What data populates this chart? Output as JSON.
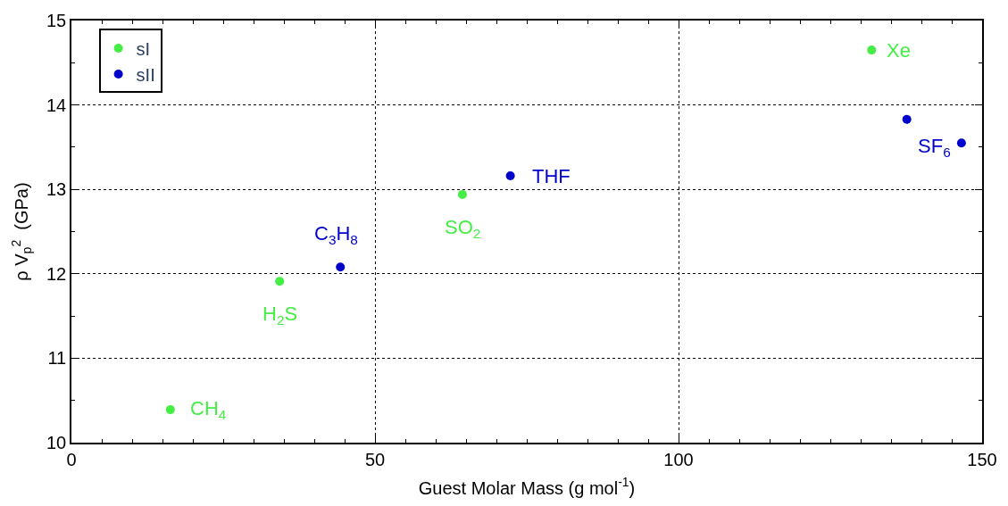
{
  "chart_data": {
    "type": "scatter",
    "xlabel": "Guest Molar Mass (g mol$^{-1}$)",
    "ylabel": "ρ V$_{p}$$^{2}$  (GPa)",
    "series": [
      {
        "name": "sI",
        "color": "#44ee44",
        "x": [
          16.3,
          34.3,
          64.4,
          131.8
        ],
        "values": [
          10.39,
          11.91,
          12.94,
          14.65
        ]
      },
      {
        "name": "sII",
        "color": "#0000cc",
        "x": [
          44.3,
          72.3,
          137.6,
          146.6
        ],
        "values": [
          12.08,
          13.16,
          13.83,
          13.55
        ]
      }
    ],
    "annotations": [
      {
        "text": "CH$_{4}$",
        "x": 16.3,
        "y": 10.39
      },
      {
        "text": "H$_{2}$S",
        "x": 34.3,
        "y": 11.91
      },
      {
        "text": "C$_{3}$H$_{8}$",
        "x": 44.3,
        "y": 12.08
      },
      {
        "text": "SO$_{2}$",
        "x": 64.4,
        "y": 12.94
      },
      {
        "text": "THF",
        "x": 72.3,
        "y": 13.16
      },
      {
        "text": "Xe",
        "x": 131.8,
        "y": 14.65
      },
      {
        "text": "SF$_{6}$",
        "x": 146.6,
        "y": 13.55
      }
    ],
    "xlim": [
      0,
      150
    ],
    "xticks": [
      0,
      50,
      100,
      150
    ],
    "ylim": [
      10,
      15
    ],
    "yticks": [
      10,
      11,
      12,
      13,
      14,
      15
    ],
    "grid": true,
    "legend": "top left",
    "marker": "circle"
  }
}
